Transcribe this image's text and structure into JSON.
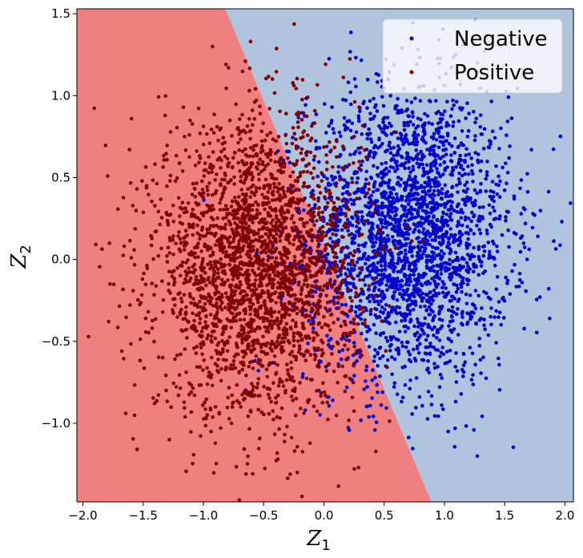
{
  "chart_data": {
    "type": "scatter",
    "title": "",
    "xlabel_main": "Z",
    "xlabel_sub": "1",
    "ylabel_main": "Z",
    "ylabel_sub": "2",
    "xlim": [
      -2.05,
      2.07
    ],
    "ylim": [
      -1.48,
      1.53
    ],
    "xticks": [
      -2.0,
      -1.5,
      -1.0,
      -0.5,
      0.0,
      0.5,
      1.0,
      1.5,
      2.0
    ],
    "xtick_labels": [
      "−2.0",
      "−1.5",
      "−1.0",
      "−0.5",
      "0.0",
      "0.5",
      "1.0",
      "1.5",
      "2.0"
    ],
    "yticks": [
      -1.0,
      -0.5,
      0.0,
      0.5,
      1.0,
      1.5
    ],
    "ytick_labels": [
      "−1.0",
      "−0.5",
      "0.0",
      "0.5",
      "1.0",
      "1.5"
    ],
    "grid": false,
    "legend_position": "top-right",
    "decision_boundary": {
      "points": [
        [
          -0.82,
          1.53
        ],
        [
          0.89,
          -1.48
        ]
      ],
      "positive_region_color": "#f08080",
      "negative_region_color": "#b0c4de"
    },
    "series": [
      {
        "name": "Negative",
        "color": "#0000cd",
        "center": [
          0.7,
          0.15
        ],
        "spread": [
          0.42,
          0.45
        ],
        "count": 2600
      },
      {
        "name": "Positive",
        "color": "#800000",
        "center": [
          -0.55,
          -0.05
        ],
        "spread": [
          0.42,
          0.45
        ],
        "count": 2600
      }
    ]
  }
}
